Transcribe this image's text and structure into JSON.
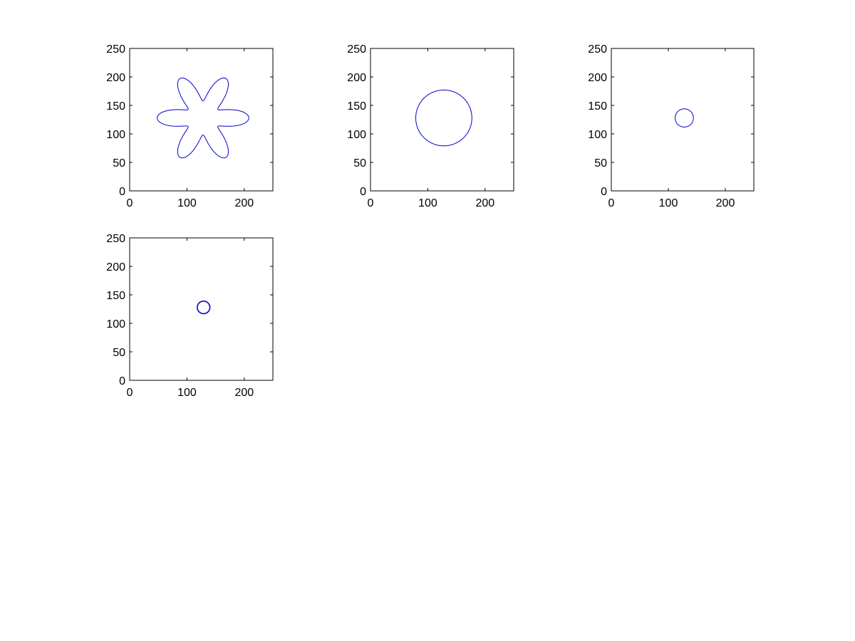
{
  "chart_data": [
    {
      "type": "line",
      "title": "",
      "xlabel": "",
      "ylabel": "",
      "xlim": [
        0,
        250
      ],
      "ylim": [
        0,
        250
      ],
      "xticks": [
        0,
        100,
        200
      ],
      "yticks": [
        0,
        50,
        100,
        150,
        200,
        250
      ],
      "grid": false,
      "shape": "star",
      "center": [
        128,
        128
      ],
      "mean_radius": 55,
      "lobe_amplitude": 25,
      "lobes": 6,
      "line_color": "#0000cc"
    },
    {
      "type": "line",
      "title": "",
      "xlabel": "",
      "ylabel": "",
      "xlim": [
        0,
        250
      ],
      "ylim": [
        0,
        250
      ],
      "xticks": [
        0,
        100,
        200
      ],
      "yticks": [
        0,
        50,
        100,
        150,
        200,
        250
      ],
      "grid": false,
      "shape": "circle",
      "center": [
        128,
        128
      ],
      "radius": 49,
      "line_color": "#0000cc"
    },
    {
      "type": "line",
      "title": "",
      "xlabel": "",
      "ylabel": "",
      "xlim": [
        0,
        250
      ],
      "ylim": [
        0,
        250
      ],
      "xticks": [
        0,
        100,
        200
      ],
      "yticks": [
        0,
        50,
        100,
        150,
        200,
        250
      ],
      "grid": false,
      "shape": "circle",
      "center": [
        128,
        128
      ],
      "radius": 16,
      "line_color": "#0000cc"
    },
    {
      "type": "line",
      "title": "",
      "xlabel": "",
      "ylabel": "",
      "xlim": [
        0,
        250
      ],
      "ylim": [
        0,
        250
      ],
      "xticks": [
        0,
        100,
        200
      ],
      "yticks": [
        0,
        50,
        100,
        150,
        200,
        250
      ],
      "grid": false,
      "shape": "circle",
      "center": [
        129,
        128
      ],
      "radius": 11,
      "line_color": "#0000cc"
    }
  ]
}
